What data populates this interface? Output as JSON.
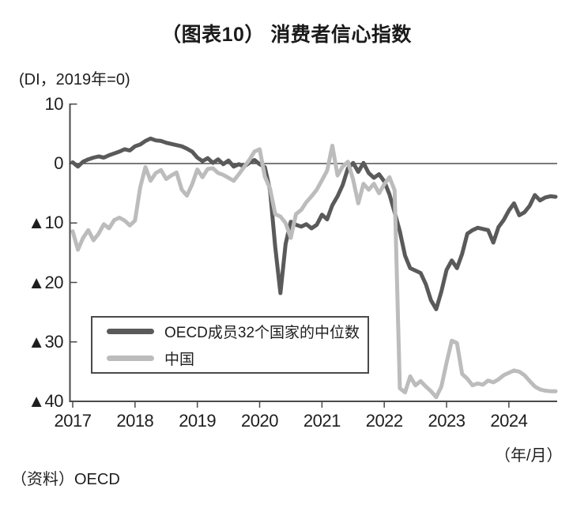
{
  "title": "（图表10） 消费者信心指数",
  "unit_note": "(DI，2019年=0)",
  "x_axis_unit": "（年/月）",
  "source": "（资料）OECD",
  "colors": {
    "oecd_line": "#5a5a5a",
    "china_line": "#bcbcbc",
    "axis": "#4a4a4a",
    "zero_line": "#2a2a2a",
    "text": "#1e1e1e"
  },
  "legend": {
    "items": [
      {
        "label": "OECD成员32个国家的中位数",
        "color_key": "oecd_line"
      },
      {
        "label": "中国",
        "color_key": "china_line"
      }
    ]
  },
  "chart_data": {
    "type": "line",
    "frequency": "monthly",
    "x_start": "2017-01",
    "x_end": "2024-10",
    "ylim": [
      -40,
      10
    ],
    "grid": false,
    "legend_position": "lower-left-box",
    "x_ticks": [
      "2017",
      "2018",
      "2019",
      "2020",
      "2021",
      "2022",
      "2023",
      "2024"
    ],
    "y_ticks": [
      {
        "label": "10",
        "value": 10
      },
      {
        "label": "0",
        "value": 0
      },
      {
        "label": "▲10",
        "value": -10
      },
      {
        "label": "▲20",
        "value": -20
      },
      {
        "label": "▲30",
        "value": -30
      },
      {
        "label": "▲40",
        "value": -40
      }
    ],
    "series": [
      {
        "name": "OECD成员32个国家的中位数",
        "color_key": "oecd_line",
        "values": [
          0.2,
          -0.5,
          0.3,
          0.7,
          1.0,
          1.2,
          1.0,
          1.4,
          1.7,
          2.0,
          2.4,
          2.2,
          2.9,
          3.2,
          3.8,
          4.2,
          3.9,
          3.8,
          3.5,
          3.3,
          3.1,
          2.9,
          2.5,
          2.0,
          1.0,
          0.4,
          0.9,
          0.1,
          0.7,
          -0.1,
          0.5,
          -0.5,
          -0.1,
          -0.5,
          0.1,
          0.6,
          -0.1,
          -0.6,
          -4.5,
          -14.0,
          -21.8,
          -13.5,
          -9.8,
          -10.3,
          -10.6,
          -10.2,
          -10.9,
          -10.3,
          -8.6,
          -9.4,
          -7.0,
          -5.5,
          -3.6,
          -0.8,
          0.1,
          -1.4,
          0.1,
          -1.6,
          -2.4,
          -1.8,
          -3.0,
          -5.2,
          -8.2,
          -11.4,
          -15.5,
          -17.6,
          -18.0,
          -18.4,
          -20.3,
          -23.0,
          -24.5,
          -21.5,
          -17.9,
          -16.3,
          -17.6,
          -15.2,
          -11.8,
          -11.2,
          -10.8,
          -11.0,
          -11.2,
          -13.3,
          -10.7,
          -9.5,
          -7.9,
          -6.7,
          -8.7,
          -8.2,
          -7.1,
          -5.3,
          -6.2,
          -5.7,
          -5.5,
          -5.6
        ]
      },
      {
        "name": "中国",
        "color_key": "china_line",
        "values": [
          -11.4,
          -14.5,
          -12.5,
          -11.2,
          -12.9,
          -11.8,
          -10.2,
          -10.9,
          -9.5,
          -9.1,
          -9.6,
          -10.4,
          -9.6,
          -4.0,
          -0.6,
          -2.9,
          -1.6,
          -1.1,
          -2.6,
          -2.0,
          -1.5,
          -4.4,
          -5.4,
          -3.5,
          -1.0,
          -2.3,
          -0.9,
          -0.8,
          -1.6,
          -1.9,
          -2.4,
          -2.9,
          -1.8,
          -0.6,
          0.6,
          2.0,
          2.4,
          -2.2,
          -4.2,
          -8.5,
          -8.9,
          -10.0,
          -12.5,
          -8.5,
          -7.8,
          -6.5,
          -5.5,
          -4.4,
          -2.8,
          -1.2,
          3.0,
          -2.0,
          -0.5,
          0.3,
          -2.7,
          -6.7,
          -3.4,
          -4.4,
          -3.4,
          -5.0,
          -3.5,
          -2.3,
          -4.5,
          -37.8,
          -38.5,
          -35.8,
          -37.3,
          -36.6,
          -37.5,
          -38.3,
          -39.3,
          -37.5,
          -33.5,
          -29.8,
          -30.2,
          -35.4,
          -36.2,
          -37.3,
          -37.0,
          -37.2,
          -36.5,
          -36.8,
          -36.3,
          -35.6,
          -35.2,
          -34.8,
          -35.0,
          -35.6,
          -36.6,
          -37.5,
          -38.0,
          -38.2,
          -38.3,
          -38.3
        ]
      }
    ]
  }
}
